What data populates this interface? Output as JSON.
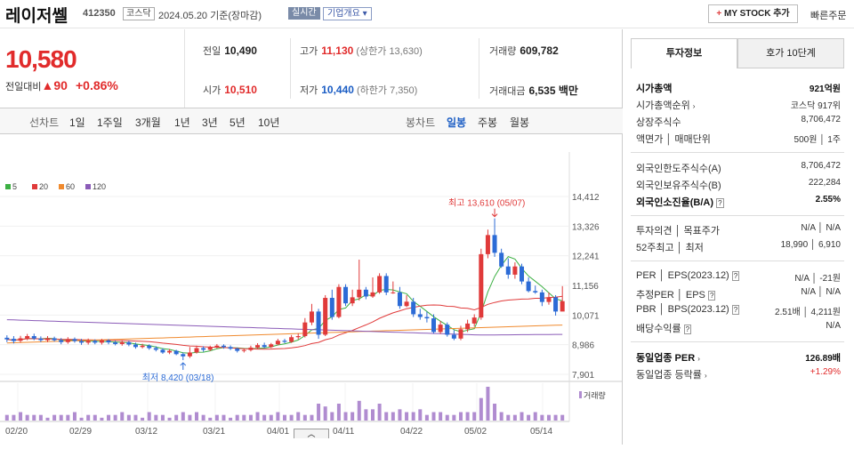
{
  "header": {
    "name": "레이저쎌",
    "code": "412350",
    "market": "코스닥",
    "date": "2024.05.20",
    "basis": "기준(장마감)",
    "realtime": "실시간",
    "corp": "기업개요 ▾",
    "mystock_plus": "+",
    "mystock": "MY STOCK 추가",
    "quick": "빠른주문"
  },
  "price": {
    "current": "10,580",
    "change_label": "전일대비",
    "change_arrow": "▲",
    "change": "90",
    "change_pct": "+0.86%"
  },
  "stats": {
    "prev_label": "전일",
    "prev": "10,490",
    "high_label": "고가",
    "high": "11,130",
    "upper_limit": "(상한가 13,630)",
    "volume_label": "거래량",
    "volume": "609,782",
    "open_label": "시가",
    "open": "10,510",
    "low_label": "저가",
    "low": "10,440",
    "lower_limit": "(하한가 7,350)",
    "amount_label": "거래대금",
    "amount": "6,535 백만"
  },
  "toolbar": {
    "line_label": "선차트",
    "d1": "1일",
    "w1": "1주일",
    "m3": "3개월",
    "y1": "1년",
    "y3": "3년",
    "y5": "5년",
    "y10": "10년",
    "candle_label": "봉차트",
    "daily": "일봉",
    "weekly": "주봉",
    "monthly": "월봉"
  },
  "chart_data": {
    "type": "candlestick",
    "legend": [
      {
        "name": "5",
        "color": "#3cb043"
      },
      {
        "name": "20",
        "color": "#e03a3a"
      },
      {
        "name": "60",
        "color": "#f08a2e"
      },
      {
        "name": "120",
        "color": "#8b5cb8"
      }
    ],
    "yticks": [
      "14,412",
      "13,326",
      "12,241",
      "11,156",
      "10,071",
      "8,986",
      "7,901"
    ],
    "ylim": [
      7901,
      14412
    ],
    "xticks": [
      "02/20",
      "02/29",
      "03/12",
      "03/21",
      "04/01",
      "04/11",
      "04/22",
      "05/02",
      "05/14"
    ],
    "high_note": "최고 13,610 (05/07)",
    "low_note": "최저 8,420 (03/18)",
    "volume_label": "거래량",
    "candles": [
      [
        9240,
        9180,
        9330,
        9080
      ],
      [
        9200,
        9120,
        9300,
        9030
      ],
      [
        9130,
        9220,
        9310,
        9060
      ],
      [
        9210,
        9300,
        9380,
        9150
      ],
      [
        9300,
        9210,
        9390,
        9150
      ],
      [
        9210,
        9150,
        9290,
        9080
      ],
      [
        9150,
        9220,
        9300,
        9080
      ],
      [
        9220,
        9150,
        9280,
        9100
      ],
      [
        9150,
        9080,
        9230,
        9000
      ],
      [
        9080,
        9190,
        9260,
        9020
      ],
      [
        9190,
        9120,
        9250,
        9060
      ],
      [
        9120,
        9060,
        9200,
        8980
      ],
      [
        9060,
        9130,
        9210,
        8990
      ],
      [
        9130,
        9060,
        9180,
        9000
      ],
      [
        9060,
        9140,
        9200,
        8990
      ],
      [
        9140,
        9070,
        9190,
        9000
      ],
      [
        9070,
        9010,
        9130,
        8960
      ],
      [
        9010,
        9080,
        9150,
        8950
      ],
      [
        9080,
        8990,
        9130,
        8930
      ],
      [
        8990,
        8900,
        9060,
        8840
      ],
      [
        8900,
        8950,
        9020,
        8850
      ],
      [
        8950,
        8860,
        9000,
        8800
      ],
      [
        8860,
        8800,
        8930,
        8740
      ],
      [
        8800,
        8700,
        8860,
        8650
      ],
      [
        8700,
        8760,
        8830,
        8640
      ],
      [
        8760,
        8640,
        8800,
        8600
      ],
      [
        8640,
        8560,
        8700,
        8420
      ],
      [
        8560,
        8700,
        8900,
        8500
      ],
      [
        8700,
        8860,
        8950,
        8660
      ],
      [
        8860,
        8800,
        8930,
        8730
      ],
      [
        8800,
        8890,
        8950,
        8760
      ],
      [
        8890,
        8950,
        9010,
        8850
      ],
      [
        8950,
        8900,
        9000,
        8840
      ],
      [
        8900,
        8840,
        8960,
        8790
      ],
      [
        8840,
        8760,
        8880,
        8700
      ],
      [
        8760,
        8790,
        8840,
        8700
      ],
      [
        8790,
        8880,
        8950,
        8740
      ],
      [
        8880,
        8970,
        9040,
        8840
      ],
      [
        8970,
        8900,
        9060,
        8860
      ],
      [
        8900,
        9000,
        9050,
        8860
      ],
      [
        9000,
        9130,
        9200,
        8960
      ],
      [
        9130,
        9090,
        9200,
        9040
      ],
      [
        9090,
        9260,
        9340,
        9050
      ],
      [
        9260,
        9300,
        9400,
        9180
      ],
      [
        9300,
        9800,
        9960,
        9250
      ],
      [
        9800,
        10200,
        10480,
        9700
      ],
      [
        10200,
        9350,
        10300,
        9200
      ],
      [
        9350,
        10700,
        10800,
        9300
      ],
      [
        10700,
        10000,
        11000,
        9900
      ],
      [
        10000,
        11100,
        11200,
        9950
      ],
      [
        11100,
        10500,
        11200,
        10400
      ],
      [
        10500,
        10720,
        11000,
        10400
      ],
      [
        10720,
        11000,
        12100,
        10600
      ],
      [
        11000,
        10750,
        11100,
        10650
      ],
      [
        10750,
        10900,
        11450,
        10700
      ],
      [
        10900,
        11500,
        11600,
        10850
      ],
      [
        11500,
        10900,
        11600,
        10800
      ],
      [
        10900,
        10900,
        11300,
        10850
      ],
      [
        10900,
        10400,
        11100,
        10300
      ],
      [
        10400,
        10560,
        10800,
        10360
      ],
      [
        10560,
        10100,
        10700,
        10000
      ],
      [
        10100,
        10000,
        10300,
        9900
      ],
      [
        10000,
        9950,
        10200,
        9800
      ],
      [
        9950,
        9450,
        10100,
        9400
      ],
      [
        9450,
        9720,
        9850,
        9380
      ],
      [
        9720,
        9350,
        9800,
        9280
      ],
      [
        9350,
        9210,
        9520,
        9150
      ],
      [
        9210,
        9550,
        9680,
        9150
      ],
      [
        9550,
        9760,
        9900,
        9450
      ],
      [
        9760,
        9980,
        10100,
        9650
      ],
      [
        9980,
        12300,
        12500,
        9900
      ],
      [
        12300,
        13000,
        13200,
        12150
      ],
      [
        13000,
        12350,
        13610,
        12200
      ],
      [
        12350,
        11850,
        12500,
        11800
      ],
      [
        11850,
        11550,
        12150,
        11400
      ],
      [
        11550,
        11850,
        12000,
        11400
      ],
      [
        11850,
        11300,
        11950,
        11200
      ],
      [
        11300,
        10950,
        11450,
        10900
      ],
      [
        10950,
        10900,
        11150,
        10850
      ],
      [
        10900,
        10550,
        11000,
        10400
      ],
      [
        10550,
        10720,
        10900,
        10450
      ],
      [
        10720,
        10200,
        10800,
        10050
      ],
      [
        10200,
        10580,
        11130,
        10440
      ]
    ],
    "volume": [
      2,
      2,
      3,
      2,
      2,
      2,
      1,
      2,
      2,
      2,
      3,
      1,
      2,
      2,
      1,
      2,
      2,
      3,
      2,
      2,
      1,
      3,
      2,
      2,
      1,
      2,
      3,
      2,
      3,
      2,
      1,
      2,
      2,
      1,
      2,
      2,
      2,
      3,
      2,
      2,
      3,
      2,
      2,
      3,
      2,
      2,
      6,
      5,
      3,
      6,
      3,
      3,
      7,
      4,
      4,
      6,
      3,
      3,
      4,
      3,
      3,
      4,
      2,
      3,
      3,
      2,
      2,
      3,
      3,
      3,
      8,
      12,
      6,
      3,
      2,
      2,
      3,
      2,
      3,
      2,
      2,
      2,
      2
    ]
  },
  "sidebar": {
    "tab_invest": "투자정보",
    "tab_orderbook": "호가 10단계",
    "mcap_label": "시가총액",
    "mcap": "921억원",
    "mcap_rank_label": "시가총액순위",
    "mcap_rank": "코스닥 917위",
    "shares_label": "상장주식수",
    "shares": "8,706,472",
    "par_label": "액면가",
    "unit_label": "매매단위",
    "par_unit": "500원 │ 1주",
    "foreign_limit_label": "외국인한도주식수(A)",
    "foreign_limit": "8,706,472",
    "foreign_hold_label": "외국인보유주식수(B)",
    "foreign_hold": "222,284",
    "foreign_ratio_label": "외국인소진율(B/A)",
    "foreign_ratio": "2.55%",
    "opinion_label": "투자의견",
    "target_label": "목표주가",
    "opinion_target": "N/A │ N/A",
    "w52_high_label": "52주최고",
    "w52_low_label": "최저",
    "w52": "18,990 │ 6,910",
    "per_label": "PER",
    "eps_label": "EPS(2023.12)",
    "per_eps": "N/A │ -21원",
    "eper_label": "추정PER",
    "eeps_label": "EPS",
    "eper_eeps": "N/A │ N/A",
    "pbr_label": "PBR",
    "bps_label": "BPS(2023.12)",
    "pbr_bps": "2.51배 │ 4,211원",
    "div_label": "배당수익률",
    "div": "N/A",
    "ind_per_label": "동일업종 PER",
    "ind_per": "126.89배",
    "ind_rate_label": "동일업종 등락률",
    "ind_rate": "+1.29%"
  },
  "footer": {
    "toggle": "︿"
  }
}
